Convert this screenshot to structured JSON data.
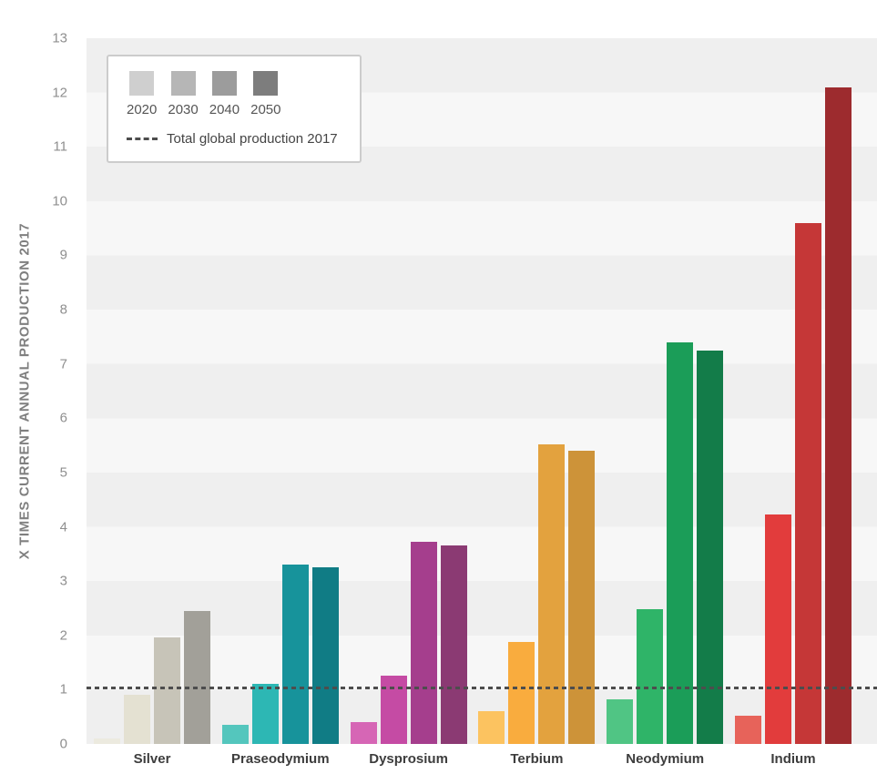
{
  "chart_data": {
    "type": "bar",
    "title": "",
    "ylabel": "X TIMES CURRENT ANNUAL PRODUCTION 2017",
    "xlabel": "",
    "ylim": [
      0,
      13
    ],
    "yticks": [
      0,
      1,
      2,
      3,
      4,
      5,
      6,
      7,
      8,
      9,
      10,
      11,
      12,
      13
    ],
    "grid": "horizontal-bands",
    "legend": {
      "position": "top-left",
      "years": [
        "2020",
        "2030",
        "2040",
        "2050"
      ],
      "swatch_colors": [
        "#cfcfcf",
        "#b6b6b6",
        "#9c9c9c",
        "#7d7d7d"
      ],
      "reference_label": "Total global production 2017"
    },
    "reference_line": {
      "value": 1,
      "style": "dashed",
      "color": "#4d4d4d"
    },
    "categories": [
      "Silver",
      "Praseodymium",
      "Dysprosium",
      "Terbium",
      "Neodymium",
      "Indium"
    ],
    "groups": [
      {
        "name": "Silver",
        "values": [
          0.1,
          0.9,
          1.97,
          2.45
        ],
        "colors": [
          "#eceadf",
          "#e4e1d2",
          "#c7c4b8",
          "#a2a099"
        ]
      },
      {
        "name": "Praseodymium",
        "values": [
          0.35,
          1.1,
          3.3,
          3.25
        ],
        "colors": [
          "#54c6bd",
          "#2db7b4",
          "#17939b",
          "#107c85"
        ]
      },
      {
        "name": "Dysprosium",
        "values": [
          0.4,
          1.25,
          3.72,
          3.65
        ],
        "colors": [
          "#d666b5",
          "#c54ba4",
          "#a53e8d",
          "#8b3a73"
        ]
      },
      {
        "name": "Terbium",
        "values": [
          0.6,
          1.88,
          5.52,
          5.4
        ],
        "colors": [
          "#fcc360",
          "#f9ac3e",
          "#e3a23e",
          "#cd9339"
        ]
      },
      {
        "name": "Neodymium",
        "values": [
          0.82,
          2.48,
          7.4,
          7.25
        ],
        "colors": [
          "#50c584",
          "#2fb468",
          "#1b9d58",
          "#137c49"
        ]
      },
      {
        "name": "Indium",
        "values": [
          0.52,
          4.22,
          9.6,
          12.1
        ],
        "colors": [
          "#e7635a",
          "#e23c3c",
          "#c53737",
          "#9d2b2e"
        ]
      }
    ]
  }
}
